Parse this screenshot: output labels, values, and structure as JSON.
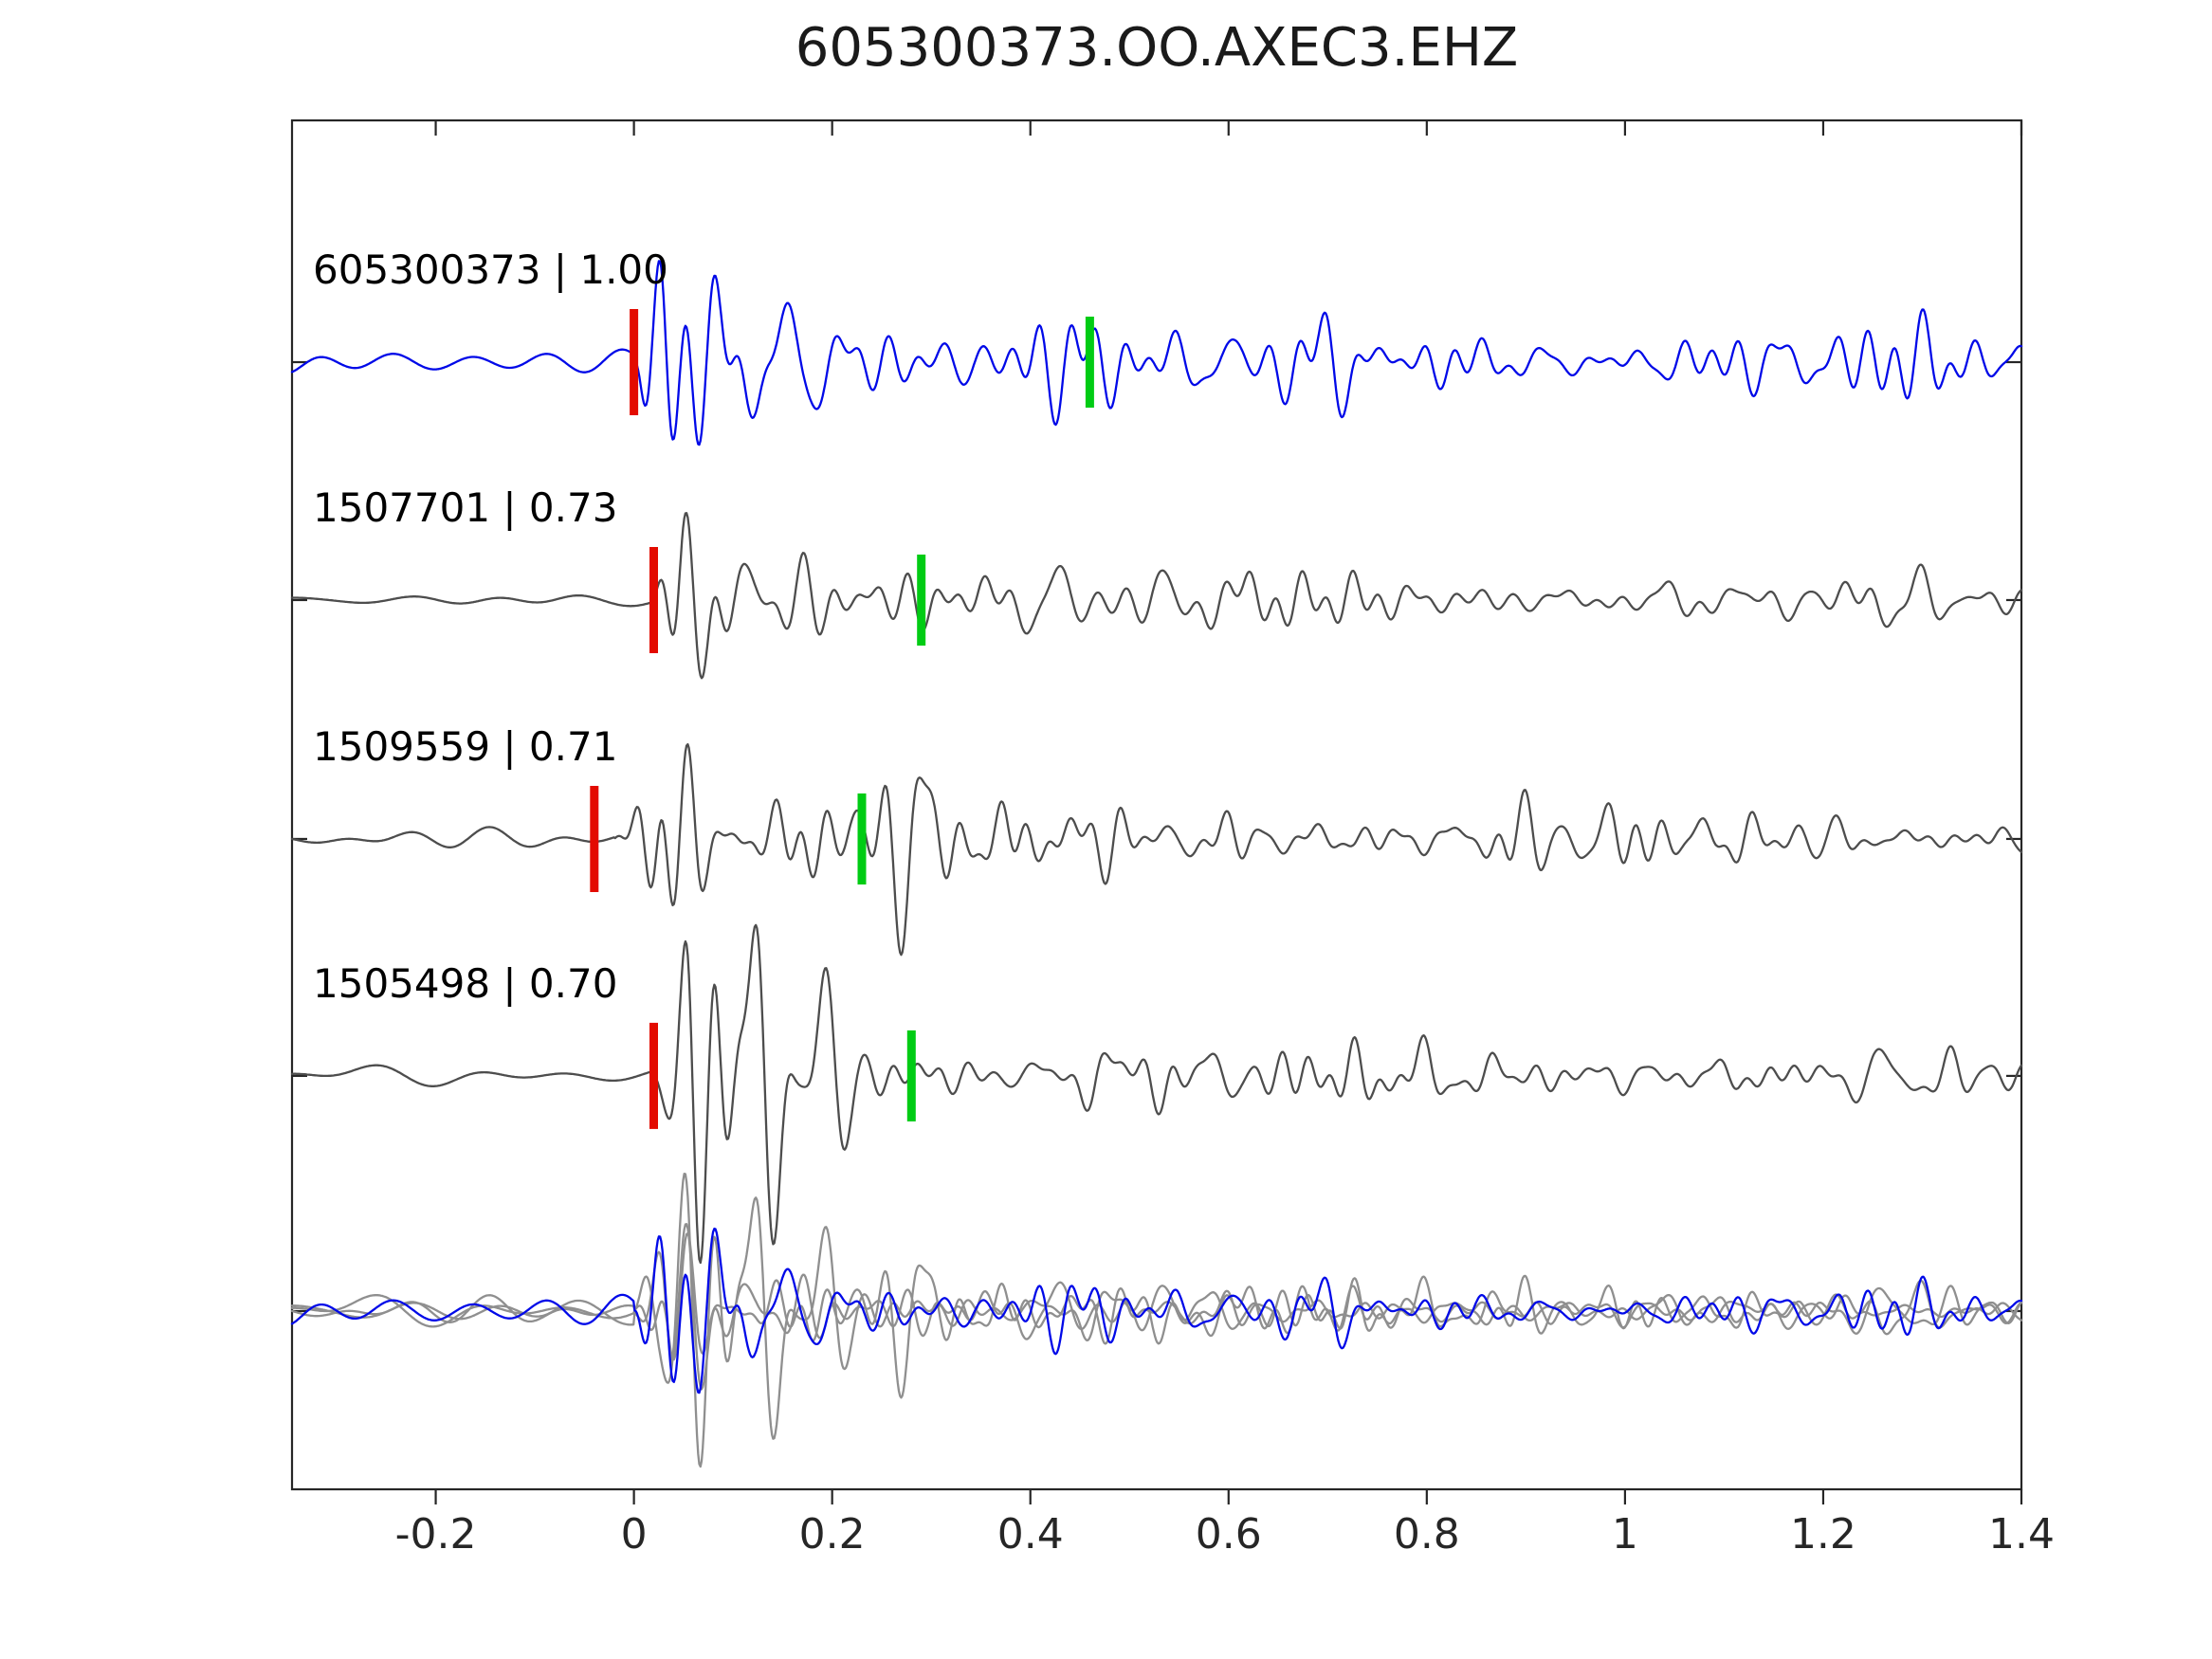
{
  "title": "605300373.OO.AXEC3.EHZ",
  "chart_data": {
    "type": "line",
    "subtype": "seismic-waveform-correlation-panel",
    "title": "605300373.OO.AXEC3.EHZ",
    "xlim": [
      -0.345,
      1.4
    ],
    "grid": false,
    "legend": "none",
    "xticks": [
      {
        "value": -0.2,
        "label": "-0.2"
      },
      {
        "value": 0,
        "label": "0"
      },
      {
        "value": 0.2,
        "label": "0.2"
      },
      {
        "value": 0.4,
        "label": "0.4"
      },
      {
        "value": 0.6,
        "label": "0.6"
      },
      {
        "value": 0.8,
        "label": "0.8"
      },
      {
        "value": 1,
        "label": "1"
      },
      {
        "value": 1.2,
        "label": "1.2"
      },
      {
        "value": 1.4,
        "label": "1.4"
      }
    ],
    "colors": {
      "target_trace": "#0009e8",
      "template_trace": "#4d4d4d",
      "overlay_template": "#8f8f8f",
      "pick_marker_red": "#e30b00",
      "marker_green": "#00cc14",
      "axis": "#262626"
    },
    "traces": [
      {
        "label": "605300373 | 1.00",
        "event_id": "605300373",
        "correlation": 1.0,
        "role": "target",
        "red_marker_x": 0.0,
        "green_marker_x": 0.46,
        "synth": {
          "seed": 17,
          "onset": 0.0,
          "pre": 0.14,
          "peak": 0.95,
          "coda": 0.42,
          "codaDecay": 3.5,
          "burstDecay": 0.17
        }
      },
      {
        "label": "1507701 | 0.73",
        "event_id": "1507701",
        "correlation": 0.73,
        "role": "template",
        "red_marker_x": 0.02,
        "green_marker_x": 0.29,
        "synth": {
          "seed": 42,
          "onset": 0.02,
          "pre": 0.07,
          "peak": 1.0,
          "coda": 0.3,
          "codaDecay": 2.2,
          "burstDecay": 0.15
        }
      },
      {
        "label": "1509559 | 0.71",
        "event_id": "1509559",
        "correlation": 0.71,
        "role": "template",
        "red_marker_x": -0.04,
        "green_marker_x": 0.23,
        "synth": {
          "seed": 7,
          "onset": -0.02,
          "pre": 0.12,
          "peak": 0.95,
          "coda": 0.34,
          "codaDecay": 2.6,
          "burstDecay": 0.18
        }
      },
      {
        "label": "1505498 | 0.70",
        "event_id": "1505498",
        "correlation": 0.7,
        "role": "template",
        "red_marker_x": 0.02,
        "green_marker_x": 0.28,
        "synth": {
          "seed": 23,
          "onset": 0.02,
          "pre": 0.1,
          "peak": 0.95,
          "coda": 0.28,
          "codaDecay": 2.2,
          "burstDecay": 0.15
        }
      }
    ],
    "overlay_row": {
      "description": "all four traces time-aligned and overlaid",
      "members": [
        {
          "ref": "1507701",
          "color_role": "overlay_template",
          "synth": {
            "seed": 42,
            "onset": 0.0,
            "pre": 0.16,
            "peak": 0.75,
            "coda": 0.26,
            "codaDecay": 2.2,
            "burstDecay": 0.16
          }
        },
        {
          "ref": "1509559",
          "color_role": "overlay_template",
          "synth": {
            "seed": 7,
            "onset": 0.0,
            "pre": 0.16,
            "peak": 0.75,
            "coda": 0.26,
            "codaDecay": 2.2,
            "burstDecay": 0.16
          }
        },
        {
          "ref": "1505498",
          "color_role": "overlay_template",
          "synth": {
            "seed": 23,
            "onset": 0.0,
            "pre": 0.15,
            "peak": 0.72,
            "coda": 0.24,
            "codaDecay": 2.2,
            "burstDecay": 0.16
          }
        },
        {
          "ref": "605300373",
          "color_role": "target",
          "synth": {
            "seed": 17,
            "onset": 0.0,
            "pre": 0.18,
            "peak": 0.72,
            "coda": 0.3,
            "codaDecay": 2.8,
            "burstDecay": 0.16
          }
        }
      ]
    }
  }
}
